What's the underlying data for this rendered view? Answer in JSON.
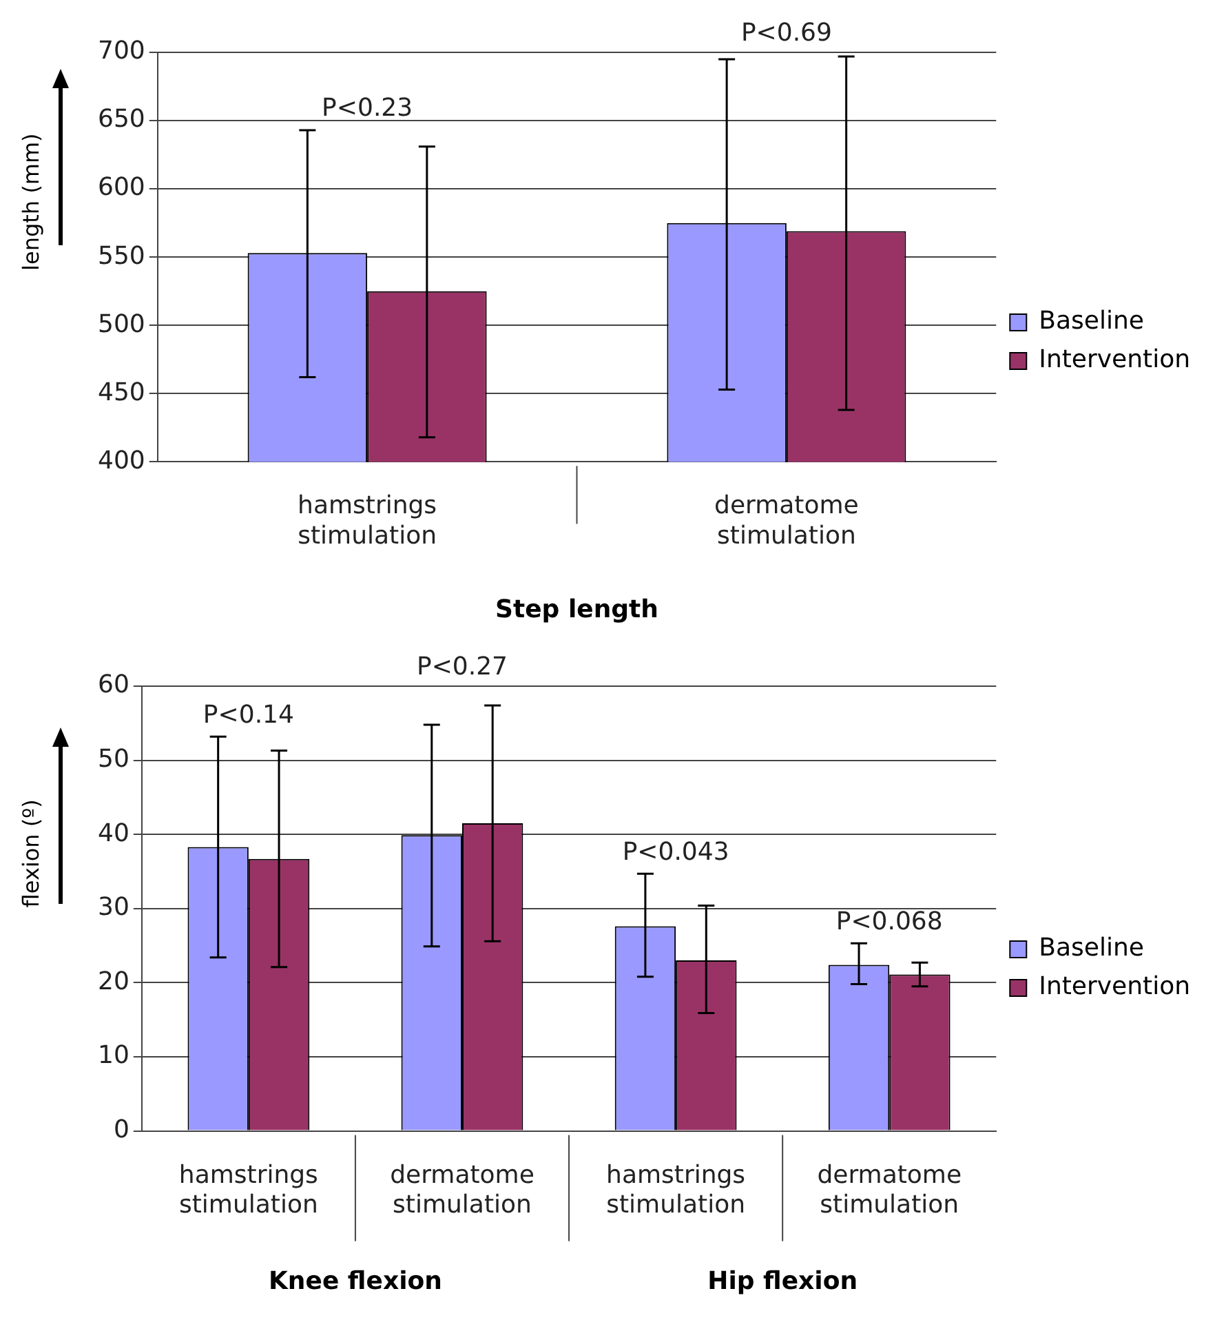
{
  "chart_data": [
    {
      "type": "bar",
      "categories": [
        "hamstrings stimulation",
        "dermatome stimulation"
      ],
      "xlabel": "Step length",
      "ylabel": "length (mm)",
      "ylim": [
        400,
        700
      ],
      "yticks": [
        400,
        450,
        500,
        550,
        600,
        650,
        700
      ],
      "grid": "y",
      "legend": "right",
      "series": [
        {
          "name": "Baseline",
          "color": "#9999ff",
          "values": [
            553,
            575
          ],
          "errors": [
            [
              462,
              643
            ],
            [
              453,
              695
            ]
          ]
        },
        {
          "name": "Intervention",
          "color": "#993366",
          "values": [
            525,
            569
          ],
          "errors": [
            [
              418,
              631
            ],
            [
              438,
              697
            ]
          ]
        }
      ],
      "annotations": [
        "P<0.23",
        "P<0.69"
      ]
    },
    {
      "type": "bar",
      "categories": [
        "hamstrings stimulation",
        "dermatome stimulation",
        "hamstrings stimulation",
        "dermatome stimulation"
      ],
      "ylabel": "flexion (º)",
      "ylim": [
        0,
        60
      ],
      "yticks": [
        0,
        10,
        20,
        30,
        40,
        50,
        60
      ],
      "grid": "y",
      "legend": "right",
      "series": [
        {
          "name": "Baseline",
          "color": "#9999ff",
          "values": [
            38.3,
            39.9,
            27.6,
            22.4
          ],
          "errors": [
            [
              23.4,
              53.2
            ],
            [
              24.9,
              54.8
            ],
            [
              20.8,
              34.7
            ],
            [
              19.8,
              25.3
            ]
          ]
        },
        {
          "name": "Intervention",
          "color": "#993366",
          "values": [
            36.7,
            41.5,
            23.0,
            21.1
          ],
          "errors": [
            [
              22.1,
              51.3
            ],
            [
              25.6,
              57.4
            ],
            [
              15.9,
              30.4
            ],
            [
              19.5,
              22.7
            ]
          ]
        }
      ],
      "annotations": [
        "P<0.14",
        "P<0.27",
        "P<0.043",
        "P<0.068",
        "Knee flexion",
        "Hip flexion"
      ]
    }
  ]
}
